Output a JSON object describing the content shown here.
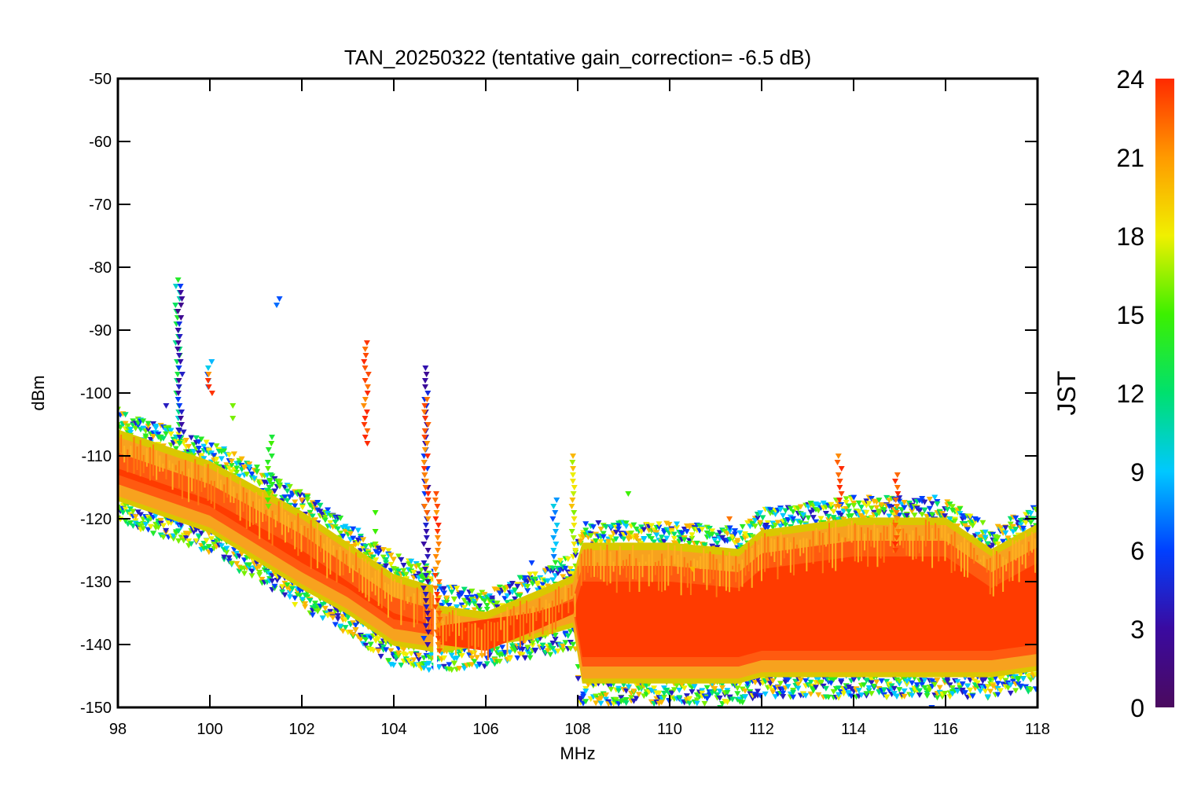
{
  "chart_data": {
    "type": "scatter",
    "title": "TAN_20250322 (tentative gain_correction= -6.5 dB)",
    "xlabel": "MHz",
    "ylabel": "dBm",
    "xlim": [
      98,
      118
    ],
    "ylim": [
      -150,
      -50
    ],
    "x_ticks": [
      "98",
      "100",
      "102",
      "104",
      "106",
      "108",
      "110",
      "112",
      "114",
      "116",
      "118"
    ],
    "y_ticks": [
      "-50",
      "-60",
      "-70",
      "-80",
      "-90",
      "-100",
      "-110",
      "-120",
      "-130",
      "-140",
      "-150"
    ],
    "colorbar": {
      "label": "JST",
      "range": [
        0,
        24
      ],
      "ticks": [
        "0",
        "3",
        "6",
        "9",
        "12",
        "15",
        "18",
        "21",
        "24"
      ],
      "colormap": "rainbow"
    },
    "grid": false,
    "noise_floor_profile": [
      {
        "x": 98.0,
        "top": -105,
        "bottom": -118
      },
      {
        "x": 100.0,
        "top": -110,
        "bottom": -123
      },
      {
        "x": 102.0,
        "top": -118,
        "bottom": -132
      },
      {
        "x": 103.0,
        "top": -123,
        "bottom": -136
      },
      {
        "x": 104.0,
        "top": -128,
        "bottom": -141
      },
      {
        "x": 104.9,
        "top": -130,
        "bottom": -142
      },
      {
        "x": 105.0,
        "top": -133,
        "bottom": -142
      },
      {
        "x": 106.0,
        "top": -134,
        "bottom": -141
      },
      {
        "x": 107.0,
        "top": -131,
        "bottom": -140
      },
      {
        "x": 107.95,
        "top": -128,
        "bottom": -138
      },
      {
        "x": 108.05,
        "top": -123,
        "bottom": -147
      },
      {
        "x": 110.0,
        "top": -123,
        "bottom": -147
      },
      {
        "x": 111.5,
        "top": -124,
        "bottom": -147
      },
      {
        "x": 112.0,
        "top": -121,
        "bottom": -146
      },
      {
        "x": 114.0,
        "top": -119,
        "bottom": -146
      },
      {
        "x": 116.0,
        "top": -119,
        "bottom": -146
      },
      {
        "x": 117.0,
        "top": -124,
        "bottom": -146
      },
      {
        "x": 118.0,
        "top": -120,
        "bottom": -145
      }
    ],
    "signal_spikes": [
      {
        "x": 99.3,
        "y_top": -82,
        "y_bottom": -108,
        "jst": 12
      },
      {
        "x": 99.35,
        "y_top": -83,
        "y_bottom": -107,
        "jst": 4
      },
      {
        "x": 100.0,
        "y_top": -95,
        "y_bottom": -99,
        "jst": 8
      },
      {
        "x": 100.0,
        "y_top": -97,
        "y_bottom": -100,
        "jst": 23
      },
      {
        "x": 101.3,
        "y_top": -107,
        "y_bottom": -118,
        "jst": 14
      },
      {
        "x": 101.5,
        "y_top": -85,
        "y_bottom": -86,
        "jst": 5
      },
      {
        "x": 103.4,
        "y_top": -92,
        "y_bottom": -108,
        "jst": 23
      },
      {
        "x": 104.7,
        "y_top": -96,
        "y_bottom": -140,
        "jst": 4
      },
      {
        "x": 104.7,
        "y_top": -101,
        "y_bottom": -120,
        "jst": 23
      },
      {
        "x": 104.95,
        "y_top": -116,
        "y_bottom": -141,
        "jst": 23
      },
      {
        "x": 107.5,
        "y_top": -117,
        "y_bottom": -126,
        "jst": 8
      },
      {
        "x": 107.9,
        "y_top": -110,
        "y_bottom": -125,
        "jst": 18
      },
      {
        "x": 113.7,
        "y_top": -110,
        "y_bottom": -118,
        "jst": 23
      },
      {
        "x": 114.95,
        "y_top": -113,
        "y_bottom": -125,
        "jst": 23
      }
    ]
  }
}
